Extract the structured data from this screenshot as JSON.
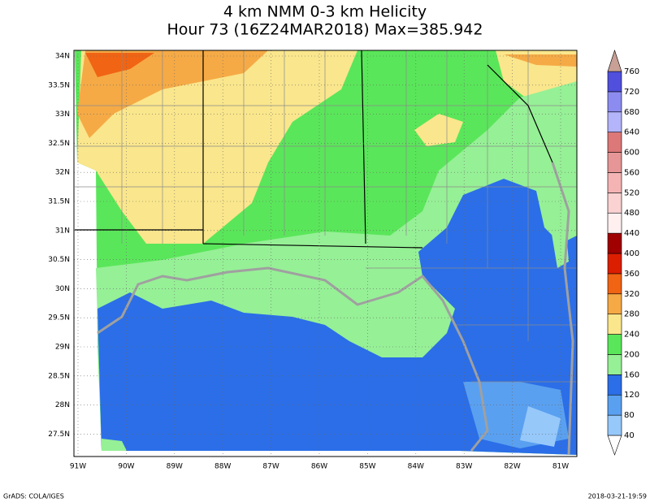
{
  "title": [
    "4 km NMM 0-3 km Helicity",
    "Hour 73 (16Z24MAR2018) Max=385.942"
  ],
  "lat_labels": [
    "34N",
    "33.5N",
    "33N",
    "32.5N",
    "32N",
    "31.5N",
    "31N",
    "30.5N",
    "30N",
    "29.5N",
    "29N",
    "28.5N",
    "28N",
    "27.5N"
  ],
  "lon_labels": [
    "91W",
    "90W",
    "89W",
    "88W",
    "87W",
    "86W",
    "85W",
    "84W",
    "83W",
    "82W",
    "81W"
  ],
  "colorbar": {
    "levels": [
      40,
      80,
      120,
      160,
      200,
      240,
      280,
      320,
      360,
      400,
      440,
      480,
      520,
      560,
      600,
      640,
      680,
      720,
      760
    ],
    "colors": [
      "#ffffff",
      "#96c8fa",
      "#5aa0f0",
      "#2b6ee8",
      "#96f096",
      "#5ae65a",
      "#fae68c",
      "#f5aa46",
      "#f06414",
      "#dc1e00",
      "#a00000",
      "#fff0f0",
      "#fad2d2",
      "#f5b4b4",
      "#e69696",
      "#dc7878",
      "#b4b4fa",
      "#8c8cf0",
      "#5050dc",
      "#c8a096"
    ]
  },
  "footer": {
    "left": "GrADS: COLA/IGES",
    "right": "2018-03-21-19:59"
  }
}
